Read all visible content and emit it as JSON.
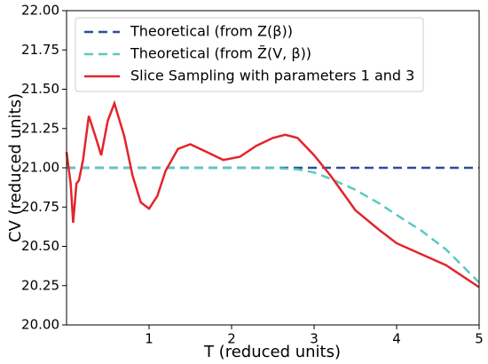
{
  "chart_data": {
    "type": "line",
    "xlabel": "T (reduced units)",
    "ylabel": "CV (reduced units)",
    "xlim": [
      0,
      5
    ],
    "xticks": [
      1,
      2,
      3,
      4,
      5
    ],
    "ylim": [
      20,
      22
    ],
    "yticks": [
      {
        "value": 20,
        "label": "20.00"
      },
      {
        "value": 20.25,
        "label": "20.25"
      },
      {
        "value": 20.5,
        "label": "20.50"
      },
      {
        "value": 20.75,
        "label": "20.75"
      },
      {
        "value": 21,
        "label": "21.00"
      },
      {
        "value": 21.25,
        "label": "21.25"
      },
      {
        "value": 21.5,
        "label": "21.50"
      },
      {
        "value": 21.75,
        "label": "21.75"
      },
      {
        "value": 22,
        "label": "22.00"
      }
    ],
    "legend": "upper left",
    "series": [
      {
        "name": "Theoretical (from Z(β))",
        "color": "#2b4d9e",
        "dashed": true,
        "x": [
          0,
          5
        ],
        "values": [
          21,
          21
        ]
      },
      {
        "name": "Theoretical (from Z̃(V, β))",
        "color": "#5cc8c0",
        "dashed": true,
        "x": [
          0,
          0.5,
          1,
          1.5,
          2,
          2.5,
          2.8,
          3.0,
          3.2,
          3.5,
          3.8,
          4.0,
          4.3,
          4.6,
          5
        ],
        "values": [
          21,
          21,
          21,
          21,
          21,
          21,
          20.99,
          20.97,
          20.93,
          20.86,
          20.77,
          20.7,
          20.6,
          20.48,
          20.27
        ]
      },
      {
        "name": "Slice Sampling with parameters 1 and 3",
        "color": "#e3242b",
        "dashed": false,
        "x": [
          0,
          0.05,
          0.08,
          0.12,
          0.15,
          0.2,
          0.27,
          0.35,
          0.42,
          0.5,
          0.58,
          0.7,
          0.8,
          0.9,
          1.0,
          1.1,
          1.2,
          1.35,
          1.5,
          1.7,
          1.9,
          2.1,
          2.3,
          2.5,
          2.65,
          2.8,
          3.0,
          3.2,
          3.5,
          3.8,
          4.0,
          4.3,
          4.6,
          5.0
        ],
        "values": [
          21.1,
          20.9,
          20.65,
          20.9,
          20.92,
          21.05,
          21.33,
          21.2,
          21.08,
          21.3,
          21.41,
          21.2,
          20.95,
          20.78,
          20.74,
          20.82,
          20.98,
          21.12,
          21.15,
          21.1,
          21.05,
          21.07,
          21.14,
          21.19,
          21.21,
          21.19,
          21.08,
          20.95,
          20.73,
          20.6,
          20.52,
          20.45,
          20.38,
          20.24
        ]
      }
    ]
  }
}
